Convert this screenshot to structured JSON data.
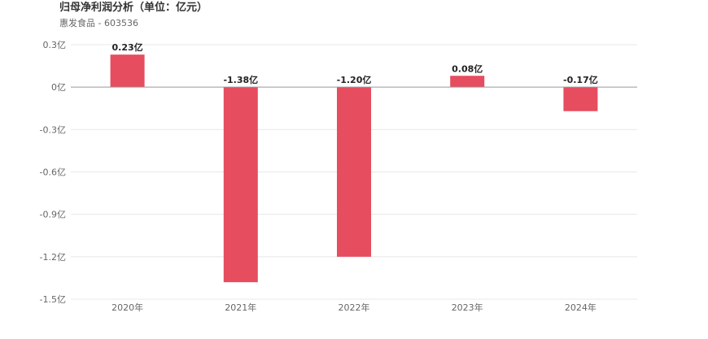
{
  "header": {
    "title": "归母净利润分析（单位：亿元）",
    "subtitle": "惠发食品 - 603536"
  },
  "colors": {
    "bar": "#e64d5f",
    "grid": "#e8e8e8",
    "zero_line": "#999999"
  },
  "chart_data": {
    "type": "bar",
    "title": "归母净利润分析（单位：亿元）",
    "subtitle": "惠发食品 - 603536",
    "categories": [
      "2020年",
      "2021年",
      "2022年",
      "2023年",
      "2024年"
    ],
    "values": [
      0.23,
      -1.38,
      -1.2,
      0.08,
      -0.17
    ],
    "data_labels": [
      "0.23亿",
      "-1.38亿",
      "-1.20亿",
      "0.08亿",
      "-0.17亿"
    ],
    "yticks": [
      0.3,
      0,
      -0.3,
      -0.6,
      -0.9,
      -1.2,
      -1.5
    ],
    "ytick_labels": [
      "0.3亿",
      "0亿",
      "-0.3亿",
      "-0.6亿",
      "-0.9亿",
      "-1.2亿",
      "-1.5亿"
    ],
    "ylim": [
      -1.5,
      0.3
    ],
    "grid": true,
    "legend": "none",
    "xlabel": "",
    "ylabel": ""
  }
}
